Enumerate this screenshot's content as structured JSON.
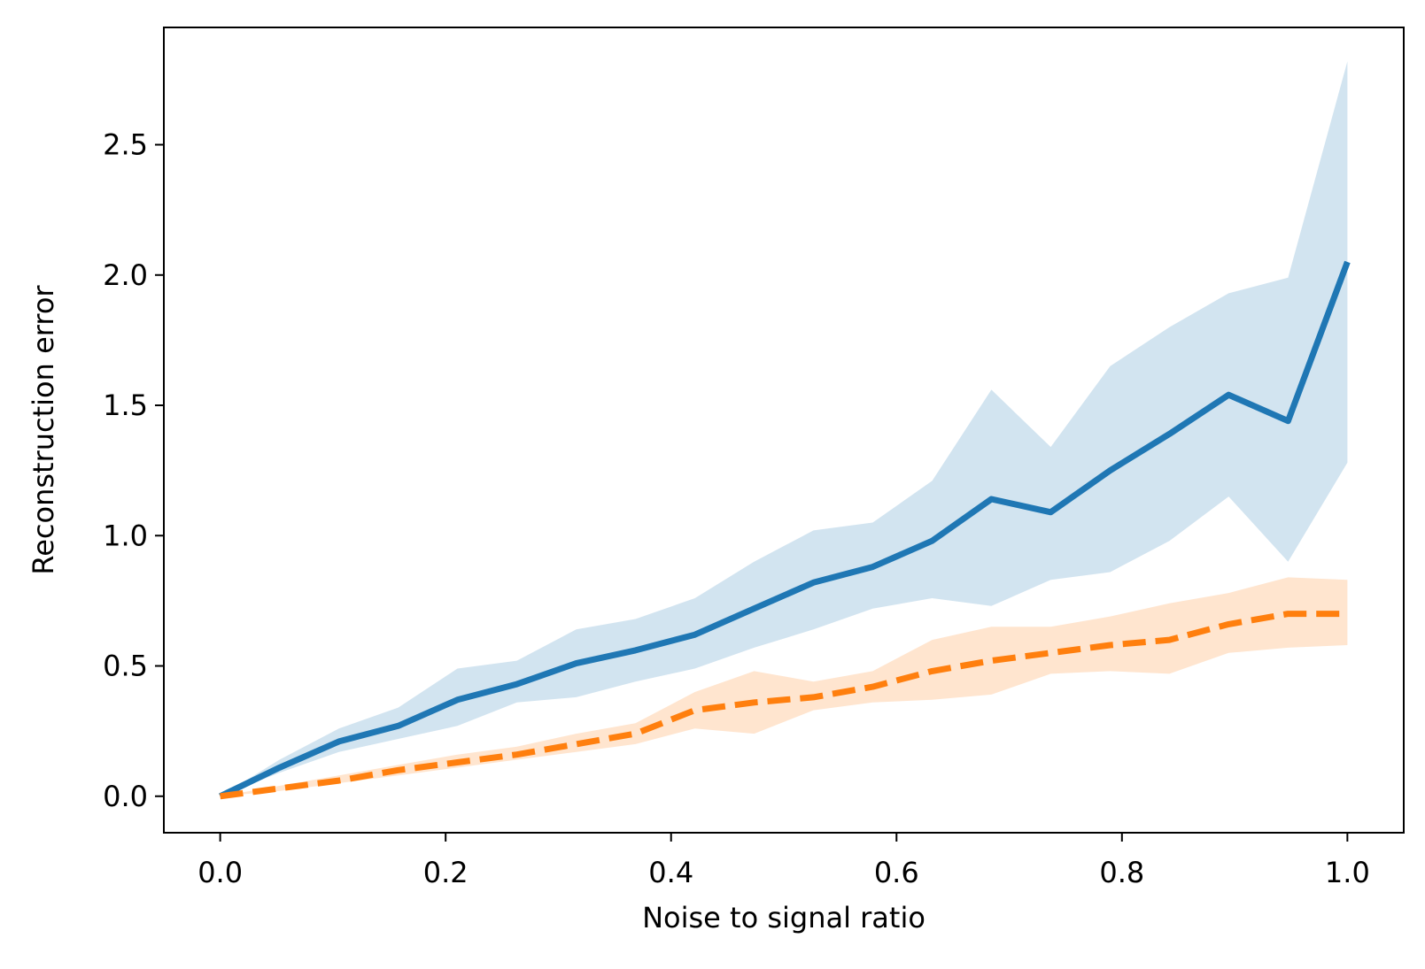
{
  "chart_data": {
    "type": "line",
    "title": "",
    "xlabel": "Noise to signal ratio",
    "ylabel": "Reconstruction error",
    "xlim": [
      -0.05,
      1.05
    ],
    "ylim": [
      -0.14,
      2.95
    ],
    "grid": false,
    "legend": "none",
    "xticks": [
      0.0,
      0.2,
      0.4,
      0.6,
      0.8,
      1.0
    ],
    "xtick_labels": [
      "0.0",
      "0.2",
      "0.4",
      "0.6",
      "0.8",
      "1.0"
    ],
    "yticks": [
      0.0,
      0.5,
      1.0,
      1.5,
      2.0,
      2.5
    ],
    "ytick_labels": [
      "0.0",
      "0.5",
      "1.0",
      "1.5",
      "2.0",
      "2.5"
    ],
    "x": [
      0.0,
      0.0526,
      0.1053,
      0.1579,
      0.2105,
      0.2632,
      0.3158,
      0.3684,
      0.4211,
      0.4737,
      0.5263,
      0.5789,
      0.6316,
      0.6842,
      0.7368,
      0.7895,
      0.8421,
      0.8947,
      0.9474,
      1.0
    ],
    "series": [
      {
        "color": "#1f77b4",
        "band_color": "#1f77b4",
        "line_style": "solid",
        "values": [
          0.0,
          0.11,
          0.21,
          0.27,
          0.37,
          0.43,
          0.51,
          0.56,
          0.62,
          0.72,
          0.82,
          0.88,
          0.98,
          1.14,
          1.09,
          1.25,
          1.39,
          1.54,
          1.44,
          2.05
        ],
        "upper": [
          0.0,
          0.14,
          0.26,
          0.34,
          0.49,
          0.52,
          0.64,
          0.68,
          0.76,
          0.9,
          1.02,
          1.05,
          1.21,
          1.56,
          1.34,
          1.65,
          1.8,
          1.93,
          1.99,
          2.82
        ],
        "lower": [
          0.0,
          0.09,
          0.17,
          0.22,
          0.27,
          0.36,
          0.38,
          0.44,
          0.49,
          0.57,
          0.64,
          0.72,
          0.76,
          0.73,
          0.83,
          0.86,
          0.98,
          1.15,
          0.9,
          1.28
        ]
      },
      {
        "color": "#ff7f0e",
        "band_color": "#ff7f0e",
        "line_style": "dashed",
        "values": [
          0.0,
          0.03,
          0.06,
          0.1,
          0.13,
          0.16,
          0.2,
          0.24,
          0.33,
          0.36,
          0.38,
          0.42,
          0.48,
          0.52,
          0.55,
          0.58,
          0.6,
          0.66,
          0.7,
          0.7
        ],
        "upper": [
          0.0,
          0.04,
          0.08,
          0.12,
          0.16,
          0.19,
          0.24,
          0.28,
          0.4,
          0.48,
          0.44,
          0.48,
          0.6,
          0.65,
          0.65,
          0.69,
          0.74,
          0.78,
          0.84,
          0.83
        ],
        "lower": [
          0.0,
          0.02,
          0.05,
          0.08,
          0.11,
          0.14,
          0.17,
          0.2,
          0.26,
          0.24,
          0.33,
          0.36,
          0.37,
          0.39,
          0.47,
          0.48,
          0.47,
          0.55,
          0.57,
          0.58
        ]
      }
    ]
  }
}
